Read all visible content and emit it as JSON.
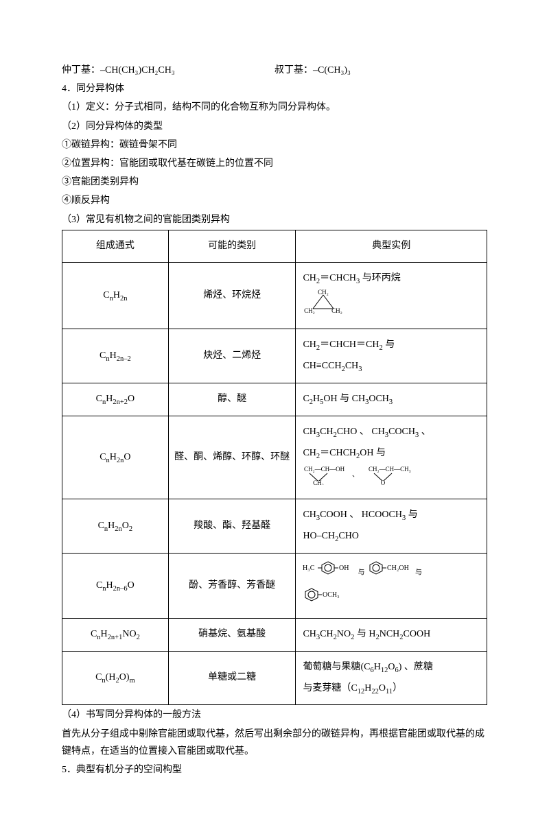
{
  "top": {
    "left_label": "仲丁基：",
    "left_formula": "–CH(CH₃)CH₂CH₃",
    "right_label": "叔丁基：",
    "right_formula": "–C(CH₃)₃"
  },
  "section4": {
    "title": "4．同分异构体",
    "p1": "（1）定义：分子式相同，结构不同的化合物互称为同分异构体。",
    "p2": "（2）同分异构体的类型",
    "l1": "①碳链异构：碳链骨架不同",
    "l2": "②位置异构：官能团或取代基在碳链上的位置不同",
    "l3": "③官能团类别异构",
    "l4": "④顺反异构",
    "p3": "（3）常见有机物之间的官能团类别异构"
  },
  "table": {
    "h1": "组成通式",
    "h2": "可能的类别",
    "h3": "典型实例",
    "rows": [
      {
        "formula_html": "C<sub>n</sub>H<sub>2n</sub>",
        "category": "烯烃、环烷烃",
        "example_html": "CH<sub>2</sub>＝CHCH<sub>3</sub> <span class='cn'>与环丙烷</span>"
      },
      {
        "formula_html": "C<sub>n</sub>H<sub>2n–2</sub>",
        "category": "炔烃、二烯烃",
        "example_html": "CH<sub>2</sub>＝CHCH＝CH<sub>2</sub> <span class='cn'>与</span><br>CH≡CCH<sub>2</sub>CH<sub>3</sub>"
      },
      {
        "formula_html": "C<sub>n</sub>H<sub>2n+2</sub>O",
        "category": "醇、醚",
        "example_html": "C<sub>2</sub>H<sub>5</sub>OH <span class='cn'>与</span> CH<sub>3</sub>OCH<sub>3</sub>"
      },
      {
        "formula_html": "C<sub>n</sub>H<sub>2n</sub>O",
        "category": "醛、酮、烯醇、环醇、环醚",
        "example_html": "CH<sub>3</sub>CH<sub>2</sub>CHO 、 CH<sub>3</sub>COCH<sub>3</sub> 、<br>CH<sub>2</sub>＝CHCH<sub>2</sub>OH <span class='cn'>与</span>"
      },
      {
        "formula_html": "C<sub>n</sub>H<sub>2n</sub>O<sub>2</sub>",
        "category": "羧酸、酯、羟基醛",
        "example_html": "CH<sub>3</sub>COOH 、 HCOOCH<sub>3</sub> <span class='cn'>与</span><br>HO–CH<sub>2</sub>CHO"
      },
      {
        "formula_html": "C<sub>n</sub>H<sub>2n–6</sub>O",
        "category": "酚、芳香醇、芳香醚",
        "example_html": ""
      },
      {
        "formula_html": "C<sub>n</sub>H<sub>2n+1</sub>NO<sub>2</sub>",
        "category": "硝基烷、氨基酸",
        "example_html": "CH<sub>3</sub>CH<sub>2</sub>NO<sub>2</sub> <span class='cn'>与</span> H<sub>2</sub>NCH<sub>2</sub>COOH"
      },
      {
        "formula_html": "C<sub>n</sub>(H<sub>2</sub>O)<sub>m</sub>",
        "category": "单糖或二糖",
        "example_html": "<span class='cn'>葡萄糖与果糖</span>(C<sub>6</sub>H<sub>12</sub>O<sub>6</sub>) 、<span class='cn'>蔗糖</span><br><span class='cn'>与麦芽糖（</span>C<sub>12</sub>H<sub>22</sub>O<sub>11</sub><span class='cn'>）</span>"
      }
    ]
  },
  "after": {
    "p4": "（4）书写同分异构体的一般方法",
    "p4b": "首先从分子组成中剔除官能团或取代基，然后写出剩余部分的碳链异构，再根据官能团或取代基的成键特点，在适当的位置接入官能团或取代基。",
    "p5": "5．典型有机分子的空间构型"
  },
  "style": {
    "svg_stroke": "#000000",
    "svg_font": "Times New Roman"
  }
}
